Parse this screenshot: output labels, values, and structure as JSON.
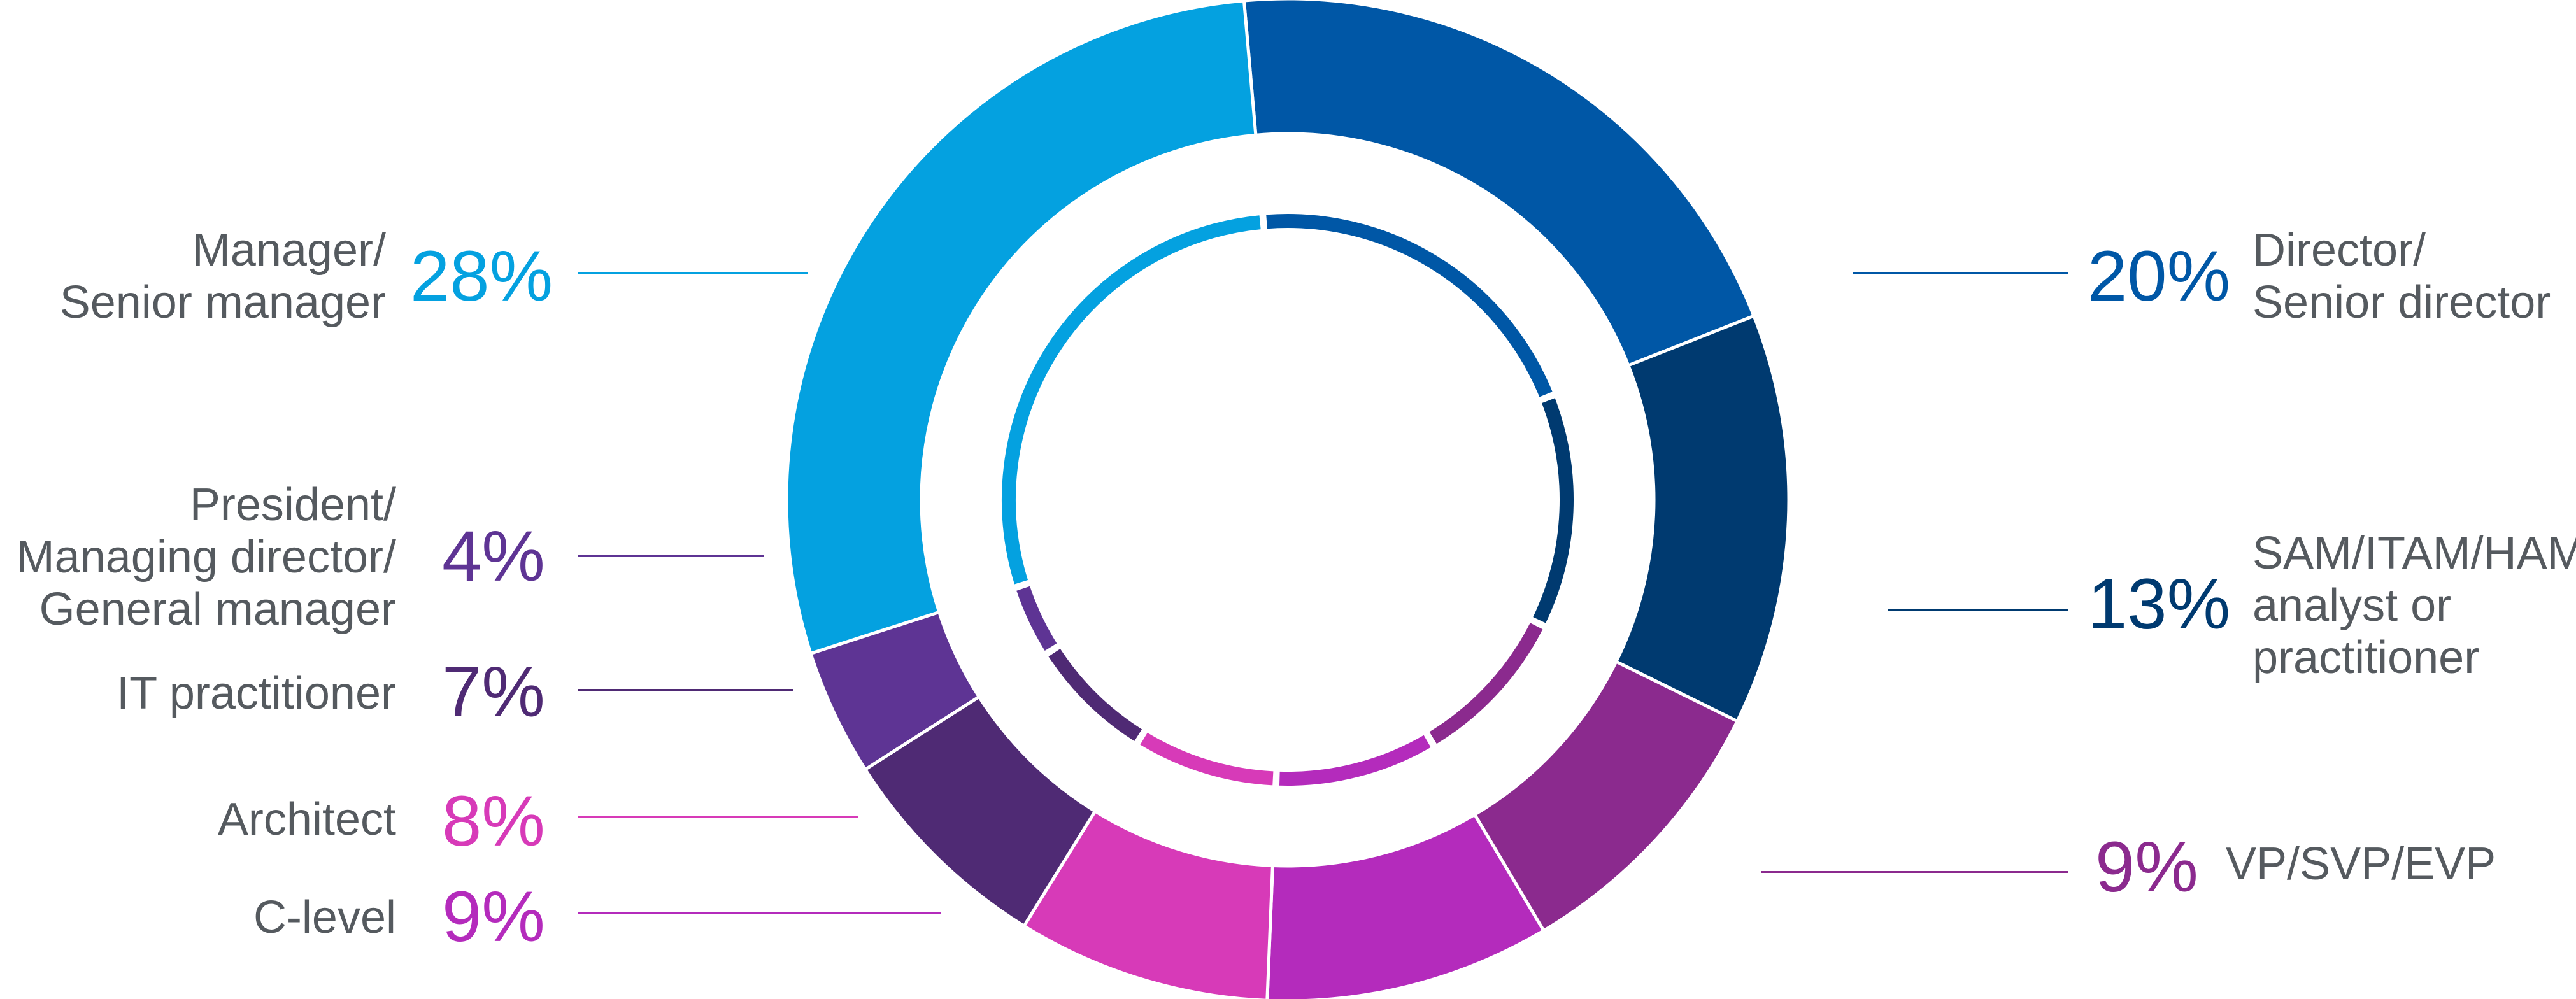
{
  "chart_data": {
    "type": "pie",
    "donut": true,
    "title": "",
    "slices": [
      {
        "value": 20,
        "label_lines": [
          "Director/",
          "Senior director"
        ],
        "pct_text": "20%",
        "color": "#0057a6"
      },
      {
        "value": 13,
        "label_lines": [
          "SAM/ITAM/HAM",
          "analyst or",
          "practitioner"
        ],
        "pct_text": "13%",
        "color": "#003a70"
      },
      {
        "value": 9,
        "label_lines": [
          "VP/SVP/EVP"
        ],
        "pct_text": "9%",
        "color": "#8b2a8e"
      },
      {
        "value": 9,
        "label_lines": [
          "C-level"
        ],
        "pct_text": "9%",
        "color": "#b42bbc"
      },
      {
        "value": 8,
        "label_lines": [
          "Architect"
        ],
        "pct_text": "8%",
        "color": "#d73ab8"
      },
      {
        "value": 7,
        "label_lines": [
          "IT practitioner"
        ],
        "pct_text": "7%",
        "color": "#4f2a74"
      },
      {
        "value": 4,
        "label_lines": [
          "President/",
          "Managing director/",
          "General manager"
        ],
        "pct_text": "4%",
        "color": "#5e3494"
      },
      {
        "value": 28,
        "label_lines": [
          "Manager/",
          "Senior manager"
        ],
        "pct_text": "28%",
        "color": "#04a1e0"
      }
    ]
  }
}
